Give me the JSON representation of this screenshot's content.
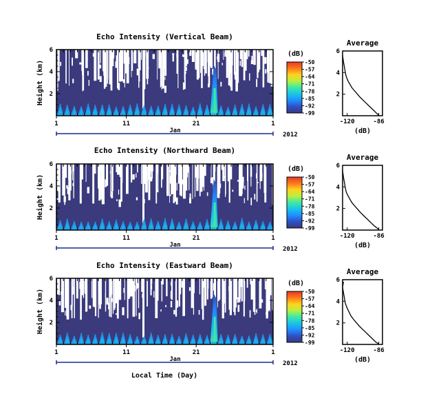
{
  "colorscale": {
    "unit_label": "(dB)",
    "ticks": [
      -50,
      -57,
      -64,
      -71,
      -78,
      -85,
      -92,
      -99
    ],
    "range": [
      -99,
      -50
    ],
    "colors": [
      "#3a3a7c",
      "#2f4fc6",
      "#1e90ff",
      "#18c6e8",
      "#3ee8a6",
      "#b8f040",
      "#ffd21e",
      "#ff7a1a",
      "#e8372a"
    ]
  },
  "fill_color_low": "#3a3a7c",
  "x_axis_label": "Local Time (Day)",
  "chart_data": [
    {
      "type": "heatmap",
      "title": "Echo Intensity (Vertical Beam)",
      "ylabel": "Height (km)",
      "x_ticks": [
        "1",
        "11",
        "21",
        "1"
      ],
      "month_label": "Jan",
      "year_label": "2012",
      "y_ticks": [
        "6",
        "4",
        "2"
      ],
      "ylim": [
        0,
        6
      ],
      "value_range_db": [
        -99,
        -50
      ],
      "grid": false
    },
    {
      "type": "heatmap",
      "title": "Echo Intensity (Northward Beam)",
      "ylabel": "Height (km)",
      "x_ticks": [
        "1",
        "11",
        "21",
        "1"
      ],
      "month_label": "Jan",
      "year_label": "2012",
      "y_ticks": [
        "6",
        "4",
        "2"
      ],
      "ylim": [
        0,
        6
      ],
      "value_range_db": [
        -99,
        -50
      ],
      "grid": false
    },
    {
      "type": "heatmap",
      "title": "Echo Intensity (Eastward Beam)",
      "ylabel": "Height (km)",
      "x_ticks": [
        "1",
        "11",
        "21",
        "1"
      ],
      "month_label": "Jan",
      "year_label": "2012",
      "y_ticks": [
        "6",
        "4",
        "2"
      ],
      "ylim": [
        0,
        6
      ],
      "value_range_db": [
        -99,
        -50
      ],
      "grid": false
    },
    {
      "type": "line",
      "title": "Average",
      "xlabel": "(dB)",
      "x_ticks": [
        "-120",
        "-86"
      ],
      "xlim": [
        -125,
        -82
      ],
      "y_ticks": [
        "6",
        "4",
        "2"
      ],
      "ylim": [
        0,
        6
      ],
      "x": [
        -125,
        -124,
        -123,
        -122,
        -121,
        -119,
        -117,
        -115,
        -112,
        -109,
        -106,
        -103,
        -100,
        -97,
        -94,
        -91,
        -88,
        -86
      ],
      "y": [
        5.6,
        5.0,
        4.5,
        4.0,
        3.6,
        3.2,
        2.9,
        2.6,
        2.3,
        2.0,
        1.7,
        1.45,
        1.2,
        0.95,
        0.7,
        0.45,
        0.2,
        0.05
      ]
    },
    {
      "type": "line",
      "title": "Average",
      "xlabel": "(dB)",
      "x_ticks": [
        "-120",
        "-86"
      ],
      "xlim": [
        -125,
        -82
      ],
      "y_ticks": [
        "6",
        "4",
        "2"
      ],
      "ylim": [
        0,
        6
      ],
      "x": [
        -125,
        -124,
        -123,
        -122,
        -121,
        -119,
        -117,
        -115,
        -112,
        -109,
        -106,
        -103,
        -100,
        -97,
        -94,
        -91,
        -88,
        -86
      ],
      "y": [
        5.5,
        4.9,
        4.4,
        3.9,
        3.5,
        3.15,
        2.85,
        2.55,
        2.25,
        1.95,
        1.65,
        1.4,
        1.15,
        0.9,
        0.65,
        0.4,
        0.2,
        0.05
      ]
    },
    {
      "type": "line",
      "title": "Average",
      "xlabel": "(dB)",
      "x_ticks": [
        "-120",
        "-86"
      ],
      "xlim": [
        -125,
        -82
      ],
      "y_ticks": [
        "6",
        "4",
        "2"
      ],
      "ylim": [
        0,
        6
      ],
      "x": [
        -124,
        -125,
        -124,
        -123,
        -122,
        -120,
        -118,
        -116,
        -113,
        -110,
        -107,
        -104,
        -101,
        -98,
        -95,
        -92,
        -89,
        -86
      ],
      "y": [
        5.8,
        5.3,
        4.8,
        4.3,
        3.8,
        3.35,
        3.0,
        2.65,
        2.3,
        2.0,
        1.7,
        1.45,
        1.2,
        0.95,
        0.7,
        0.45,
        0.2,
        0.05
      ]
    }
  ]
}
